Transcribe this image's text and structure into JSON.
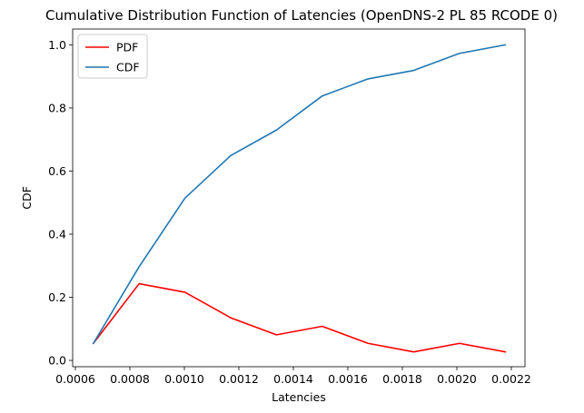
{
  "chart_data": {
    "type": "line",
    "title": "Cumulative Distribution Function of Latencies (OpenDNS-2 PL 85 RCODE 0)",
    "xlabel": "Latencies",
    "ylabel": "CDF",
    "xlim": [
      0.00059,
      0.00225
    ],
    "ylim": [
      -0.02,
      1.05
    ],
    "xticks": [
      0.0006,
      0.0008,
      0.001,
      0.0012,
      0.0014,
      0.0016,
      0.0018,
      0.002,
      0.0022
    ],
    "xtick_labels": [
      "0.0006",
      "0.0008",
      "0.0010",
      "0.0012",
      "0.0014",
      "0.0016",
      "0.0018",
      "0.0020",
      "0.0022"
    ],
    "yticks": [
      0.0,
      0.2,
      0.4,
      0.6,
      0.8,
      1.0
    ],
    "ytick_labels": [
      "0.0",
      "0.2",
      "0.4",
      "0.6",
      "0.8",
      "1.0"
    ],
    "grid": false,
    "legend_position": "upper-left",
    "x": [
      0.000666,
      0.000834,
      0.001002,
      0.00117,
      0.001338,
      0.001506,
      0.001674,
      0.001842,
      0.00201,
      0.002178
    ],
    "series": [
      {
        "name": "PDF",
        "color": "#ff0000",
        "values": [
          0.054,
          0.243,
          0.216,
          0.135,
          0.081,
          0.108,
          0.054,
          0.027,
          0.054,
          0.027
        ]
      },
      {
        "name": "CDF",
        "color": "#1f77b4",
        "values": [
          0.054,
          0.297,
          0.514,
          0.649,
          0.73,
          0.838,
          0.892,
          0.919,
          0.973,
          1.0
        ]
      }
    ]
  }
}
